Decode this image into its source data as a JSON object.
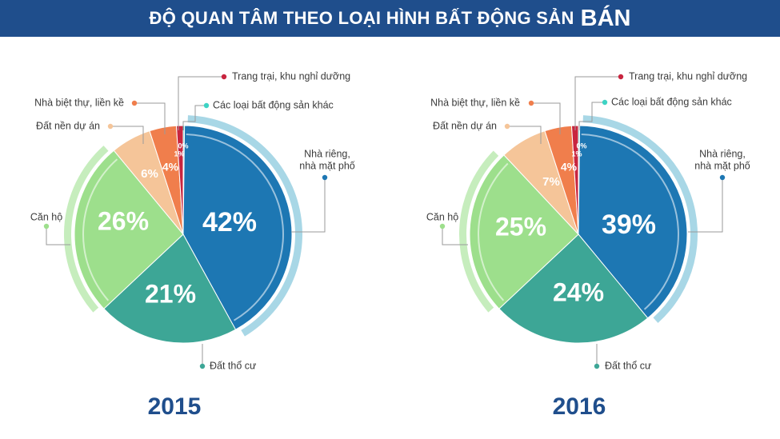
{
  "title": {
    "main": "ĐỘ QUAN TÂM THEO LOẠI HÌNH BẤT ĐỘNG SẢN",
    "emphasis": "BÁN"
  },
  "colors": {
    "banner": "#1f4e8c",
    "nha_rieng": "#1d77b3",
    "dat_tho_cu": "#3da696",
    "can_ho": "#9ddf8c",
    "dat_nen": "#f5c599",
    "biet_thu": "#f07e4c",
    "trang_trai": "#c8253f",
    "khac": "#3dd3c4"
  },
  "chart_data": [
    {
      "type": "pie",
      "year": "2015",
      "slices": [
        {
          "label": "Nhà riêng, nhà mặt phố",
          "value": 42,
          "display": "42%"
        },
        {
          "label": "Đất thổ cư",
          "value": 21,
          "display": "21%"
        },
        {
          "label": "Căn hộ",
          "value": 26,
          "display": "26%"
        },
        {
          "label": "Đất nền dự án",
          "value": 6,
          "display": "6%"
        },
        {
          "label": "Nhà biệt thự, liền kề",
          "value": 4,
          "display": "4%"
        },
        {
          "label": "Trang trại, khu nghỉ dưỡng",
          "value": 1,
          "display": "1%"
        },
        {
          "label": "Các loại bất động sản khác",
          "value": 0,
          "display": "0%"
        }
      ]
    },
    {
      "type": "pie",
      "year": "2016",
      "slices": [
        {
          "label": "Nhà riêng, nhà mặt phố",
          "value": 39,
          "display": "39%"
        },
        {
          "label": "Đất thổ cư",
          "value": 24,
          "display": "24%"
        },
        {
          "label": "Căn hộ",
          "value": 25,
          "display": "25%"
        },
        {
          "label": "Đất nền dự án",
          "value": 7,
          "display": "7%"
        },
        {
          "label": "Nhà biệt thự, liền kề",
          "value": 4,
          "display": "4%"
        },
        {
          "label": "Trang trại, khu nghỉ dưỡng",
          "value": 1,
          "display": "1%"
        },
        {
          "label": "Các loại bất động sản khác",
          "value": 0,
          "display": "0%"
        }
      ]
    }
  ]
}
